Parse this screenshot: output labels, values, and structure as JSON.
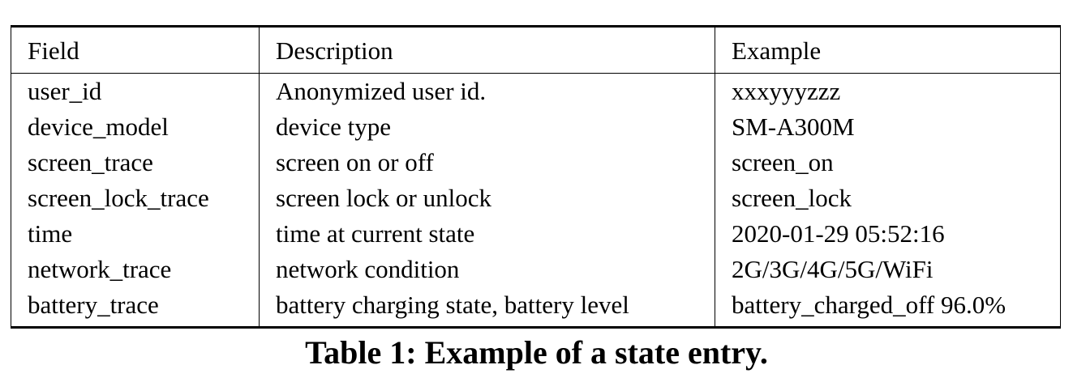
{
  "table": {
    "headers": [
      "Field",
      "Description",
      "Example"
    ],
    "rows": [
      [
        "user_id",
        "Anonymized user id.",
        "xxxyyyzzz"
      ],
      [
        "device_model",
        "device type",
        "SM-A300M"
      ],
      [
        "screen_trace",
        "screen on or off",
        "screen_on"
      ],
      [
        "screen_lock_trace",
        "screen lock or unlock",
        "screen_lock"
      ],
      [
        "time",
        "time at current state",
        "2020-01-29 05:52:16"
      ],
      [
        "network_trace",
        "network condition",
        "2G/3G/4G/5G/WiFi"
      ],
      [
        "battery_trace",
        "battery charging state, battery level",
        "battery_charged_off 96.0%"
      ]
    ]
  },
  "caption": "Table 1: Example of a state entry."
}
